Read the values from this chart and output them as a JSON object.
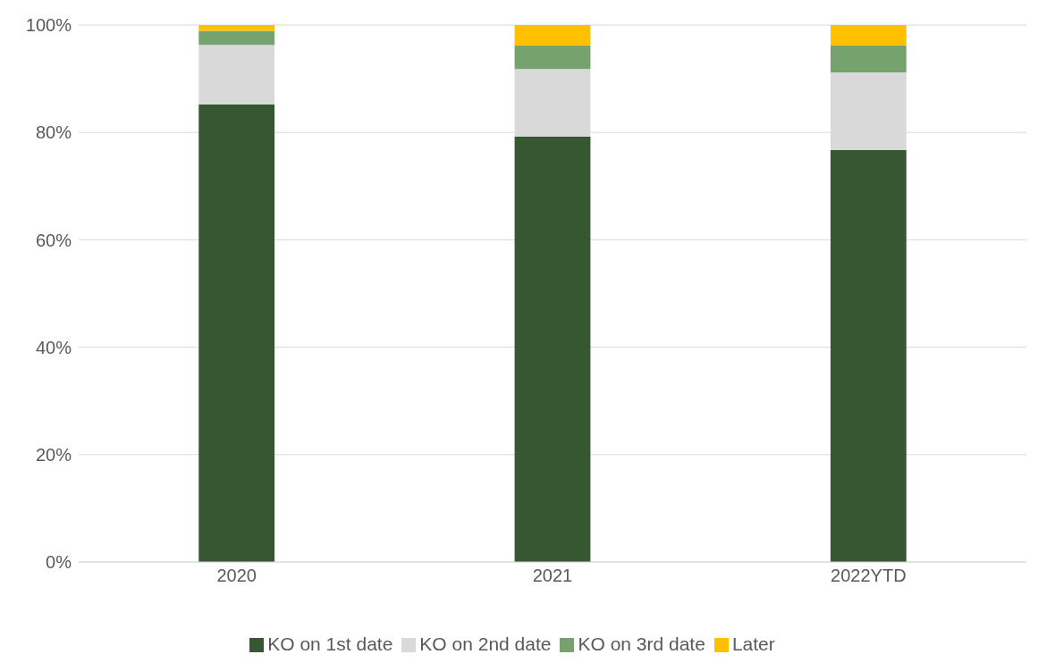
{
  "chart_data": {
    "type": "bar",
    "stacked": true,
    "categories": [
      "2020",
      "2021",
      "2022YTD"
    ],
    "series": [
      {
        "name": "KO on 1st date",
        "color": "#375632",
        "values": [
          85.2,
          79.2,
          76.7
        ]
      },
      {
        "name": "KO on 2nd date",
        "color": "#d9d9d9",
        "values": [
          11.1,
          12.6,
          14.5
        ]
      },
      {
        "name": "KO on 3rd date",
        "color": "#76a26e",
        "values": [
          2.6,
          4.4,
          5.0
        ]
      },
      {
        "name": "Later",
        "color": "#ffc000",
        "values": [
          1.1,
          3.8,
          3.8
        ]
      }
    ],
    "ylim": [
      0,
      100
    ],
    "yticks": [
      {
        "value": 0,
        "label": "0%"
      },
      {
        "value": 20,
        "label": "20%"
      },
      {
        "value": 40,
        "label": "40%"
      },
      {
        "value": 60,
        "label": "60%"
      },
      {
        "value": 80,
        "label": "80%"
      },
      {
        "value": 100,
        "label": "100%"
      }
    ],
    "grid": "y",
    "legend": "bottom"
  }
}
